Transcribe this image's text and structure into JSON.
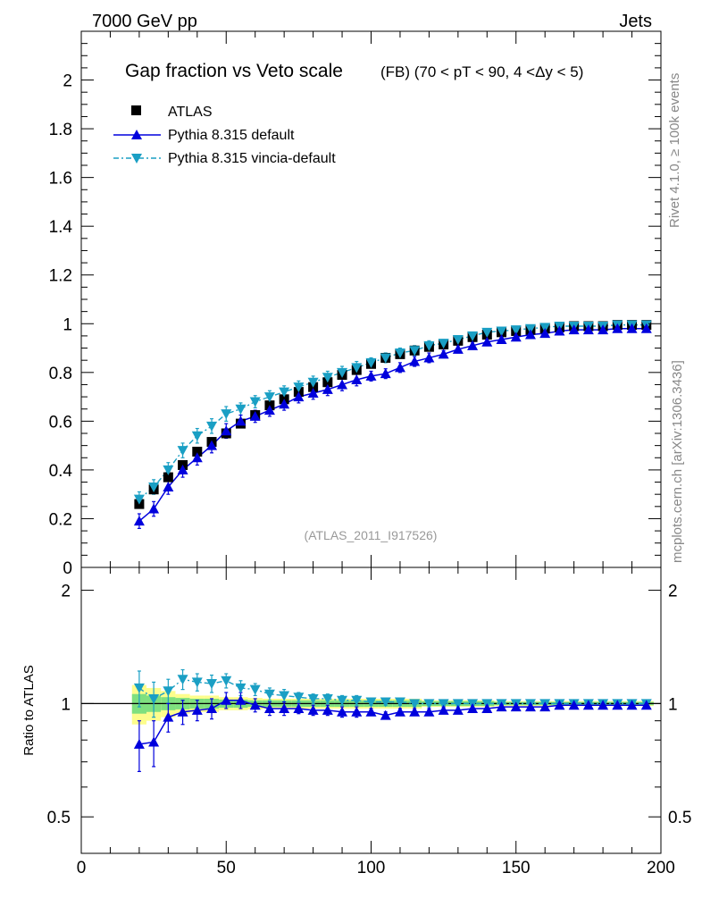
{
  "header": {
    "left": "7000 GeV pp",
    "right": "Jets"
  },
  "side_labels": {
    "rivet": "Rivet 4.1.0, ≥ 100k events",
    "mcplots": "mcplots.cern.ch [arXiv:1306.3436]"
  },
  "colors": {
    "atlas": "#000000",
    "pythia_default": "#0000dd",
    "vincia": "#1a9fc4",
    "band_inner": "#7fe07f",
    "band_outer": "#fdfd8c"
  },
  "chart_data": {
    "type": "line",
    "title_main": "Gap fraction vs Veto scale",
    "title_sub": "(FB) (70 < pT <  90, 4 <Δy < 5)",
    "watermark": "(ATLAS_2011_I917526)",
    "xlabel": "",
    "ylabel_ratio": "Ratio to ATLAS",
    "xlim": [
      0,
      200
    ],
    "ylim_main": [
      0,
      2.2
    ],
    "ylim_ratio": [
      0.4,
      2.3
    ],
    "x_ticks": [
      "0",
      "50",
      "100",
      "150",
      "200"
    ],
    "y_ticks_main": [
      "0",
      "0.2",
      "0.4",
      "0.6",
      "0.8",
      "1",
      "1.2",
      "1.4",
      "1.6",
      "1.8",
      "2"
    ],
    "y_ticks_ratio": [
      "0.5",
      "1",
      "2"
    ],
    "y_ticks_ratio_right": [
      "0.5",
      "1",
      "2"
    ],
    "x": [
      20,
      25,
      30,
      35,
      40,
      45,
      50,
      55,
      60,
      65,
      70,
      75,
      80,
      85,
      90,
      95,
      100,
      105,
      110,
      115,
      120,
      125,
      130,
      135,
      140,
      145,
      150,
      155,
      160,
      165,
      170,
      175,
      180,
      185,
      190,
      195
    ],
    "legend": [
      "ATLAS",
      "Pythia 8.315 default",
      "Pythia 8.315 vincia-default"
    ],
    "series": [
      {
        "name": "ATLAS",
        "values": [
          0.26,
          0.32,
          0.37,
          0.42,
          0.475,
          0.515,
          0.55,
          0.59,
          0.625,
          0.665,
          0.69,
          0.72,
          0.74,
          0.76,
          0.79,
          0.81,
          0.835,
          0.86,
          0.875,
          0.89,
          0.905,
          0.915,
          0.93,
          0.945,
          0.955,
          0.965,
          0.97,
          0.975,
          0.98,
          0.985,
          0.99,
          0.99,
          0.99,
          0.995,
          0.995,
          0.995
        ]
      },
      {
        "name": "Pythia 8.315 default",
        "values": [
          0.19,
          0.24,
          0.33,
          0.4,
          0.45,
          0.5,
          0.56,
          0.6,
          0.62,
          0.645,
          0.67,
          0.7,
          0.715,
          0.73,
          0.75,
          0.77,
          0.785,
          0.795,
          0.82,
          0.845,
          0.86,
          0.875,
          0.895,
          0.91,
          0.925,
          0.935,
          0.945,
          0.955,
          0.96,
          0.97,
          0.975,
          0.975,
          0.975,
          0.98,
          0.98,
          0.98
        ]
      },
      {
        "name": "Pythia 8.315 vincia-default",
        "values": [
          0.28,
          0.33,
          0.4,
          0.48,
          0.54,
          0.58,
          0.63,
          0.65,
          0.68,
          0.7,
          0.72,
          0.74,
          0.76,
          0.78,
          0.8,
          0.82,
          0.84,
          0.86,
          0.88,
          0.89,
          0.91,
          0.92,
          0.935,
          0.95,
          0.965,
          0.97,
          0.975,
          0.98,
          0.985,
          0.99,
          0.99,
          0.99,
          0.99,
          0.995,
          0.995,
          0.995
        ]
      }
    ],
    "errors": {
      "Pythia 8.315 default": [
        0.03,
        0.03,
        0.03,
        0.03,
        0.03,
        0.03,
        0.03,
        0.025,
        0.025,
        0.025,
        0.025,
        0.025,
        0.025,
        0.025,
        0.025,
        0.025,
        0.02,
        0.02,
        0.02,
        0.02,
        0.02,
        0.015,
        0.015,
        0.015,
        0.015,
        0.01,
        0.01,
        0.01,
        0.01,
        0.01,
        0.01,
        0.01,
        0.01,
        0.01,
        0.01,
        0.01
      ],
      "Pythia 8.315 vincia-default": [
        0.03,
        0.03,
        0.03,
        0.03,
        0.03,
        0.03,
        0.03,
        0.025,
        0.025,
        0.025,
        0.025,
        0.025,
        0.025,
        0.025,
        0.025,
        0.025,
        0.02,
        0.02,
        0.02,
        0.02,
        0.02,
        0.015,
        0.015,
        0.015,
        0.015,
        0.01,
        0.01,
        0.01,
        0.01,
        0.01,
        0.01,
        0.01,
        0.01,
        0.01,
        0.01,
        0.01
      ]
    },
    "ratio_series": [
      {
        "name": "Pythia 8.315 default",
        "values": [
          0.78,
          0.79,
          0.92,
          0.95,
          0.96,
          0.97,
          1.02,
          1.02,
          0.99,
          0.97,
          0.97,
          0.97,
          0.96,
          0.96,
          0.95,
          0.95,
          0.95,
          0.93,
          0.95,
          0.95,
          0.95,
          0.96,
          0.96,
          0.97,
          0.97,
          0.98,
          0.98,
          0.98,
          0.98,
          0.99,
          0.99,
          0.99,
          0.99,
          0.99,
          0.99,
          0.99
        ]
      },
      {
        "name": "Pythia 8.315 vincia-default",
        "values": [
          1.1,
          1.03,
          1.08,
          1.16,
          1.14,
          1.13,
          1.15,
          1.1,
          1.09,
          1.06,
          1.05,
          1.04,
          1.03,
          1.03,
          1.02,
          1.02,
          1.01,
          1.01,
          1.01,
          1.0,
          1.0,
          1.0,
          1.0,
          1.0,
          1.0,
          1.0,
          1.0,
          1.0,
          1.0,
          1.0,
          1.0,
          1.0,
          1.0,
          1.0,
          1.0,
          1.0
        ]
      }
    ],
    "ratio_errors": [
      0.12,
      0.11,
      0.08,
      0.07,
      0.06,
      0.06,
      0.05,
      0.05,
      0.04,
      0.04,
      0.04,
      0.03,
      0.03,
      0.03,
      0.03,
      0.03,
      0.02,
      0.02,
      0.02,
      0.02,
      0.02,
      0.02,
      0.015,
      0.015,
      0.015,
      0.015,
      0.01,
      0.01,
      0.01,
      0.01,
      0.01,
      0.01,
      0.01,
      0.01,
      0.01,
      0.01
    ],
    "data_band": {
      "x_ranges": [
        [
          17.5,
          22.5
        ],
        [
          22.5,
          27.5
        ],
        [
          27.5,
          32.5
        ],
        [
          32.5,
          37.5
        ],
        [
          37.5,
          42.5
        ],
        [
          42.5,
          47.5
        ],
        [
          47.5,
          52.5
        ],
        [
          52.5,
          57.5
        ],
        [
          57.5,
          62.5
        ],
        [
          62.5,
          67.5
        ],
        [
          67.5,
          72.5
        ],
        [
          72.5,
          77.5
        ],
        [
          77.5,
          82.5
        ],
        [
          82.5,
          87.5
        ],
        [
          87.5,
          92.5
        ],
        [
          92.5,
          97.5
        ],
        [
          97.5,
          102.5
        ],
        [
          102.5,
          107.5
        ],
        [
          107.5,
          112.5
        ],
        [
          112.5,
          117.5
        ],
        [
          117.5,
          122.5
        ],
        [
          122.5,
          127.5
        ],
        [
          127.5,
          132.5
        ],
        [
          132.5,
          137.5
        ],
        [
          137.5,
          142.5
        ],
        [
          142.5,
          147.5
        ],
        [
          147.5,
          152.5
        ],
        [
          152.5,
          157.5
        ],
        [
          157.5,
          162.5
        ],
        [
          162.5,
          167.5
        ],
        [
          167.5,
          172.5
        ],
        [
          172.5,
          177.5
        ],
        [
          177.5,
          182.5
        ],
        [
          182.5,
          187.5
        ],
        [
          187.5,
          192.5
        ],
        [
          192.5,
          197.5
        ]
      ],
      "inner": [
        0.06,
        0.05,
        0.04,
        0.035,
        0.03,
        0.03,
        0.025,
        0.025,
        0.02,
        0.02,
        0.02,
        0.02,
        0.02,
        0.02,
        0.02,
        0.02,
        0.02,
        0.02,
        0.02,
        0.02,
        0.015,
        0.015,
        0.015,
        0.015,
        0.015,
        0.01,
        0.01,
        0.01,
        0.01,
        0.01,
        0.01,
        0.01,
        0.01,
        0.01,
        0.01,
        0.01
      ],
      "outer": [
        0.12,
        0.1,
        0.08,
        0.06,
        0.05,
        0.05,
        0.04,
        0.04,
        0.035,
        0.03,
        0.03,
        0.03,
        0.03,
        0.03,
        0.03,
        0.03,
        0.03,
        0.03,
        0.03,
        0.03,
        0.02,
        0.02,
        0.02,
        0.02,
        0.02,
        0.015,
        0.015,
        0.015,
        0.015,
        0.015,
        0.015,
        0.015,
        0.015,
        0.015,
        0.015,
        0.015
      ]
    }
  }
}
